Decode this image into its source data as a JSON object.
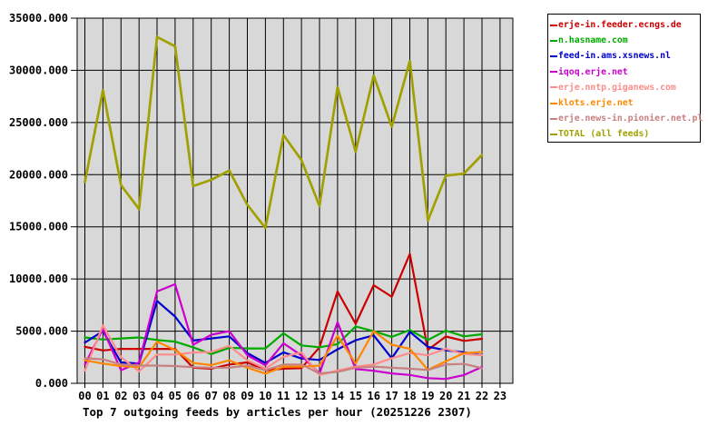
{
  "chart_data": {
    "type": "line",
    "title": "Top 7 outgoing feeds by articles per hour (20251226 2307)",
    "x": [
      "00",
      "01",
      "02",
      "03",
      "04",
      "05",
      "06",
      "07",
      "08",
      "09",
      "10",
      "11",
      "12",
      "13",
      "14",
      "15",
      "16",
      "17",
      "18",
      "19",
      "20",
      "21",
      "22",
      "23"
    ],
    "xlabel": "",
    "ylabel": "",
    "ylim": [
      0,
      35000
    ],
    "ytick_step": 5000,
    "ytick_labels": [
      "0.000",
      "5000.000",
      "10000.000",
      "15000.000",
      "20000.000",
      "25000.000",
      "30000.000",
      "35000.000"
    ],
    "grid": true,
    "plot_background": "#d8d8d8",
    "axis_color": "#000000",
    "legend_position": "outside-top-right",
    "series": [
      {
        "name": "erje-in.feeder.ecngs.de",
        "color": "#cc0000",
        "is_total": false,
        "values": [
          3500,
          3150,
          3300,
          3300,
          3300,
          3300,
          1500,
          1400,
          1800,
          2000,
          1250,
          1400,
          1450,
          3460,
          8800,
          5700,
          9400,
          8300,
          12400,
          3200,
          4480,
          4070,
          4270
        ]
      },
      {
        "name": "n.hasname.com",
        "color": "#00aa00",
        "is_total": false,
        "values": [
          4400,
          4200,
          4300,
          4400,
          4150,
          4000,
          3450,
          2800,
          3400,
          3340,
          3340,
          4800,
          3630,
          3460,
          3750,
          5450,
          5000,
          4450,
          5100,
          4150,
          5050,
          4500,
          4700
        ]
      },
      {
        "name": "feed-in.ams.xsnews.nl",
        "color": "#0000cc",
        "is_total": false,
        "values": [
          3900,
          5000,
          2000,
          1900,
          7900,
          6400,
          4100,
          4300,
          4500,
          2900,
          1950,
          2970,
          2380,
          2240,
          3260,
          4130,
          4600,
          2400,
          4940,
          3500,
          3170,
          2970,
          2700
        ]
      },
      {
        "name": "iqoq.erje.net",
        "color": "#cc00cc",
        "is_total": false,
        "values": [
          1800,
          5200,
          1250,
          2000,
          8800,
          9500,
          3700,
          4650,
          5000,
          2700,
          1720,
          3840,
          2670,
          930,
          5870,
          1370,
          1200,
          950,
          800,
          500,
          420,
          790,
          1570
        ]
      },
      {
        "name": "erje.nntp.giganews.com",
        "color": "#ff8c8c",
        "is_total": false,
        "values": [
          1220,
          5550,
          2500,
          1150,
          2760,
          2760,
          2950,
          3000,
          3600,
          2200,
          1420,
          2530,
          2970,
          790,
          1220,
          1600,
          1800,
          2400,
          2900,
          2700,
          3300,
          2800,
          2700
        ]
      },
      {
        "name": "klots.erje.net",
        "color": "#ff8800",
        "is_total": false,
        "values": [
          2200,
          1900,
          1650,
          1550,
          4000,
          3200,
          1950,
          1750,
          2200,
          1500,
          930,
          1600,
          1600,
          1700,
          4560,
          1900,
          5000,
          3700,
          3300,
          1300,
          2100,
          2900,
          3000
        ]
      },
      {
        "name": "erje.news-in.pionier.net.pl",
        "color": "#c88080",
        "is_total": false,
        "values": [
          2400,
          2300,
          1800,
          1700,
          1700,
          1650,
          1550,
          1500,
          1500,
          1700,
          1250,
          1800,
          1800,
          950,
          1100,
          1500,
          1600,
          1500,
          1400,
          1280,
          1800,
          1860,
          1450
        ]
      },
      {
        "name": "TOTAL (all feeds)",
        "color": "#a0a000",
        "is_total": true,
        "values": [
          19300,
          28100,
          19000,
          16700,
          33200,
          32300,
          18900,
          19500,
          20400,
          17100,
          14900,
          23800,
          21400,
          17000,
          28400,
          22200,
          29500,
          24600,
          30900,
          15600,
          19900,
          20100,
          21900
        ]
      }
    ]
  }
}
